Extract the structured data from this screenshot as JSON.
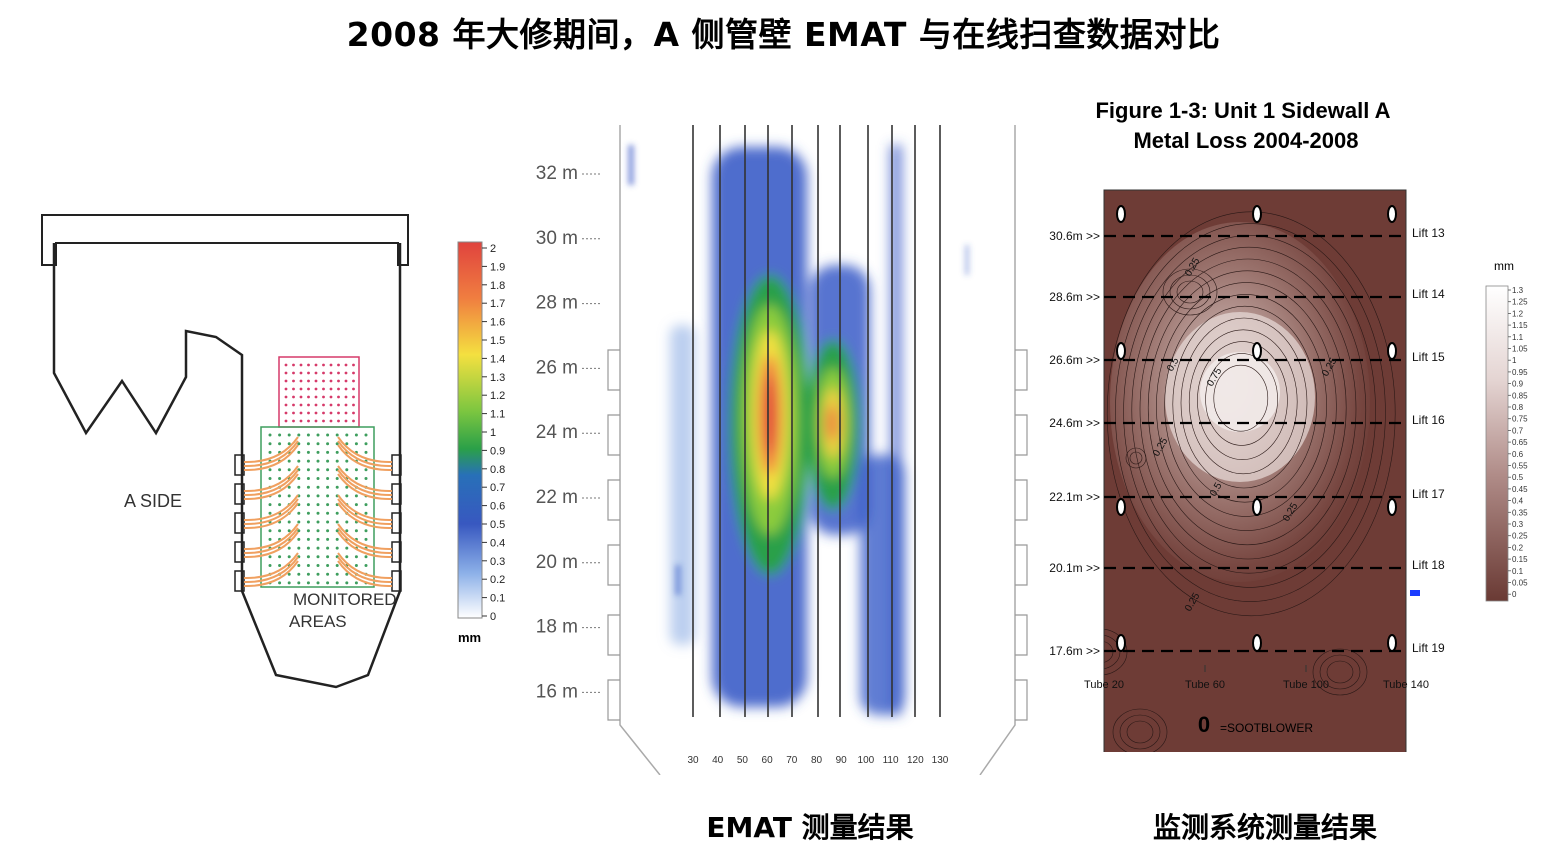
{
  "title": "2008 年大修期间，A 侧管壁 EMAT 与在线扫查数据对比",
  "boiler": {
    "side_label": "A SIDE",
    "monitored_line1": "MONITORED",
    "monitored_line2": "AREAS",
    "colors": {
      "outline": "#222222",
      "upper_grid": "#d63a6a",
      "lower_grid": "#3e9e5e",
      "tubes": "#f0a060"
    }
  },
  "emat_scale": {
    "unit": "mm",
    "ticks": [
      "2",
      "1.9",
      "1.8",
      "1.7",
      "1.6",
      "1.5",
      "1.4",
      "1.3",
      "1.2",
      "1.1",
      "1",
      "0.9",
      "0.8",
      "0.7",
      "0.6",
      "0.5",
      "0.4",
      "0.3",
      "0.2",
      "0.1",
      "0"
    ]
  },
  "emat_map": {
    "y_labels": [
      "32 m",
      "30 m",
      "28 m",
      "26 m",
      "24 m",
      "22 m",
      "20 m",
      "18 m",
      "16 m"
    ],
    "x_labels": [
      "30",
      "40",
      "50",
      "60",
      "70",
      "80",
      "90",
      "100",
      "110",
      "120",
      "130"
    ]
  },
  "figure": {
    "title_line1": "Figure 1-3: Unit 1 Sidewall A",
    "title_line2": "Metal Loss 2004-2008",
    "heights": [
      "30.6m >>",
      "28.6m >>",
      "26.6m >>",
      "24.6m >>",
      "22.1m >>",
      "20.1m >>",
      "17.6m >>"
    ],
    "lifts": [
      "Lift 13",
      "Lift 14",
      "Lift 15",
      "Lift 16",
      "Lift 17",
      "Lift 18",
      "Lift 19"
    ],
    "tubes": [
      "Tube 20",
      "Tube 60",
      "Tube 100",
      "Tube 140"
    ],
    "contour_labels": [
      "0.25",
      "0.5",
      "0.75",
      "0.25",
      "0.25",
      "0.5",
      "0.25",
      "0.25"
    ],
    "legend_symbol": "0",
    "legend_text": "=SOOTBLOWER"
  },
  "mm_scale": {
    "unit": "mm",
    "ticks": [
      "1.3",
      "1.25",
      "1.2",
      "1.15",
      "1.1",
      "1.05",
      "1",
      "0.95",
      "0.9",
      "0.85",
      "0.8",
      "0.75",
      "0.7",
      "0.65",
      "0.6",
      "0.55",
      "0.5",
      "0.45",
      "0.4",
      "0.35",
      "0.3",
      "0.25",
      "0.2",
      "0.15",
      "0.1",
      "0.05",
      "0"
    ]
  },
  "captions": {
    "emat": "EMAT 测量结果",
    "monitor": "监测系统测量结果"
  }
}
